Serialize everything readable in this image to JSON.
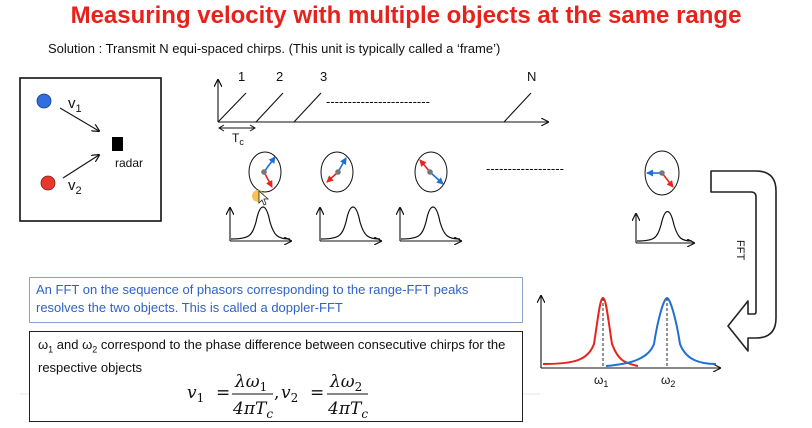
{
  "title": "Measuring velocity with multiple objects at the same range",
  "subtitle": "Solution : Transmit N equi-spaced chirps. (This unit is typically called a ‘frame’)",
  "scene": {
    "object1_label": "v",
    "object1_sub": "1",
    "object2_label": "v",
    "object2_sub": "2",
    "radar_label": "radar"
  },
  "chirps": {
    "labels": [
      "1",
      "2",
      "3",
      "N"
    ],
    "spacing_label": "T",
    "spacing_sub": "c",
    "ellipsis": "------------------------"
  },
  "phasor_ellipsis": "------------------",
  "fft_label": "FFT",
  "info_text": "An FFT on the sequence of phasors corresponding to the range-FFT peaks resolves the two objects. This is called a doppler-FFT",
  "doppler_plot": {
    "peak1_label": "ω",
    "peak1_sub": "1",
    "peak2_label": "ω",
    "peak2_sub": "2",
    "peak1_color": "#e8231c",
    "peak2_color": "#1f6fd6"
  },
  "equation_note": {
    "w1": "ω",
    "w1_sub": "1",
    "and": " and ",
    "w2": "ω",
    "w2_sub": "2",
    "rest": " correspond to the phase difference between consecutive chirps for the respective objects"
  },
  "equation": {
    "v1": "v",
    "v1_sub": "1",
    "eq": "=",
    "num1": "λω",
    "num1_sub": "1",
    "den1": "4πT",
    "den1_sub": "c",
    "comma": ",",
    "v2": "v",
    "v2_sub": "2",
    "num2": "λω",
    "num2_sub": "2",
    "den2": "4πT",
    "den2_sub": "c"
  },
  "colors": {
    "title": "#e8211b",
    "object1": "#2f6fe0",
    "object2": "#e8372d",
    "phasor_red": "#e8231c",
    "phasor_blue": "#1f6fd6",
    "info_text": "#2e62c8"
  }
}
